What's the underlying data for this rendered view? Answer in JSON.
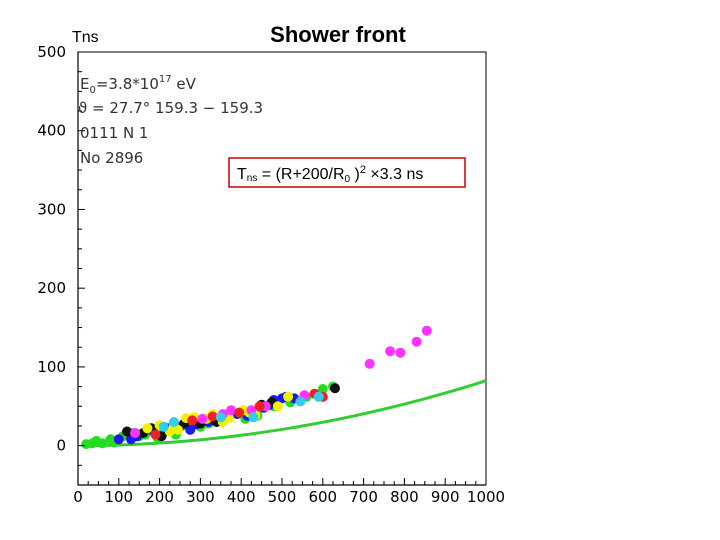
{
  "colors": {
    "fit_line": "#33cc33",
    "formula_border": "#cc0000",
    "points": {
      "green": "#22dd22",
      "blue": "#1a1aee",
      "black": "#111111",
      "yellow": "#f2f200",
      "magenta": "#ff33ff",
      "red": "#ee2222",
      "cyan": "#33ccee"
    }
  },
  "chart_data": {
    "type": "scatter",
    "title": "Shower front",
    "ylabel": "Tns",
    "xlabel": "",
    "xlim": [
      0,
      1000
    ],
    "ylim": [
      -50,
      500
    ],
    "x_ticks": [
      0,
      100,
      200,
      300,
      400,
      500,
      600,
      700,
      800,
      900,
      1000
    ],
    "y_ticks": [
      0,
      100,
      200,
      300,
      400,
      500
    ],
    "y_tick_labels": [
      "0",
      "100",
      "200",
      "300",
      "400",
      "500"
    ],
    "grid": false,
    "annotations": {
      "energy": {
        "main": "E",
        "sub": "0",
        "mid": "=3.8*10",
        "sup": "17",
        "end": " eV"
      },
      "angle": "ϑ = 27.7° 159.3 − 159.3",
      "code": "0111 N 1",
      "number": "No 2896"
    },
    "formula": {
      "prefix": "T",
      "prefix_sub": "ns",
      "mid": " = (R+200/R",
      "r_sub": "0",
      "close": " )",
      "power": "2",
      "suffix": " ×3.3 ns"
    },
    "fit": {
      "scale": 3.3,
      "R0": 200,
      "x_range": [
        20,
        1000
      ]
    },
    "series": [
      {
        "color": "green",
        "points": [
          [
            20,
            2
          ],
          [
            35,
            3
          ],
          [
            45,
            6
          ],
          [
            80,
            8
          ],
          [
            110,
            12
          ],
          [
            130,
            16
          ],
          [
            150,
            12
          ],
          [
            165,
            14
          ],
          [
            195,
            10
          ],
          [
            210,
            17
          ],
          [
            240,
            14
          ],
          [
            300,
            24
          ],
          [
            320,
            28
          ],
          [
            340,
            34
          ],
          [
            410,
            34
          ],
          [
            440,
            38
          ],
          [
            480,
            50
          ],
          [
            520,
            55
          ],
          [
            560,
            62
          ],
          [
            600,
            72
          ],
          [
            625,
            75
          ],
          [
            90,
            4
          ],
          [
            60,
            3
          ],
          [
            175,
            20
          ],
          [
            265,
            26
          ]
        ]
      },
      {
        "color": "blue",
        "points": [
          [
            100,
            8
          ],
          [
            130,
            8
          ],
          [
            145,
            12
          ],
          [
            185,
            18
          ],
          [
            220,
            22
          ],
          [
            250,
            24
          ],
          [
            275,
            20
          ],
          [
            290,
            27
          ],
          [
            320,
            30
          ],
          [
            390,
            40
          ],
          [
            415,
            38
          ],
          [
            455,
            48
          ],
          [
            470,
            52
          ],
          [
            480,
            58
          ],
          [
            500,
            60
          ],
          [
            530,
            60
          ],
          [
            510,
            62
          ]
        ]
      },
      {
        "color": "black",
        "points": [
          [
            120,
            18
          ],
          [
            180,
            22
          ],
          [
            205,
            12
          ],
          [
            260,
            28
          ],
          [
            300,
            28
          ],
          [
            340,
            30
          ],
          [
            450,
            52
          ],
          [
            475,
            55
          ],
          [
            630,
            73
          ],
          [
            160,
            16
          ]
        ]
      },
      {
        "color": "yellow",
        "points": [
          [
            170,
            22
          ],
          [
            200,
            26
          ],
          [
            235,
            26
          ],
          [
            245,
            20
          ],
          [
            265,
            35
          ],
          [
            315,
            34
          ],
          [
            330,
            40
          ],
          [
            355,
            30
          ],
          [
            370,
            35
          ],
          [
            405,
            45
          ],
          [
            420,
            42
          ],
          [
            435,
            38
          ],
          [
            490,
            50
          ],
          [
            515,
            62
          ],
          [
            285,
            36
          ],
          [
            225,
            18
          ]
        ]
      },
      {
        "color": "magenta",
        "points": [
          [
            305,
            34
          ],
          [
            355,
            40
          ],
          [
            375,
            45
          ],
          [
            425,
            45
          ],
          [
            460,
            50
          ],
          [
            555,
            64
          ],
          [
            715,
            104
          ],
          [
            765,
            120
          ],
          [
            790,
            118
          ],
          [
            830,
            132
          ],
          [
            855,
            146
          ],
          [
            140,
            16
          ]
        ]
      },
      {
        "color": "red",
        "points": [
          [
            190,
            14
          ],
          [
            280,
            32
          ],
          [
            395,
            42
          ],
          [
            445,
            50
          ],
          [
            580,
            66
          ],
          [
            600,
            62
          ],
          [
            330,
            37
          ]
        ]
      },
      {
        "color": "cyan",
        "points": [
          [
            235,
            30
          ],
          [
            350,
            36
          ],
          [
            430,
            36
          ],
          [
            545,
            56
          ],
          [
            590,
            62
          ],
          [
            210,
            24
          ]
        ]
      }
    ]
  }
}
